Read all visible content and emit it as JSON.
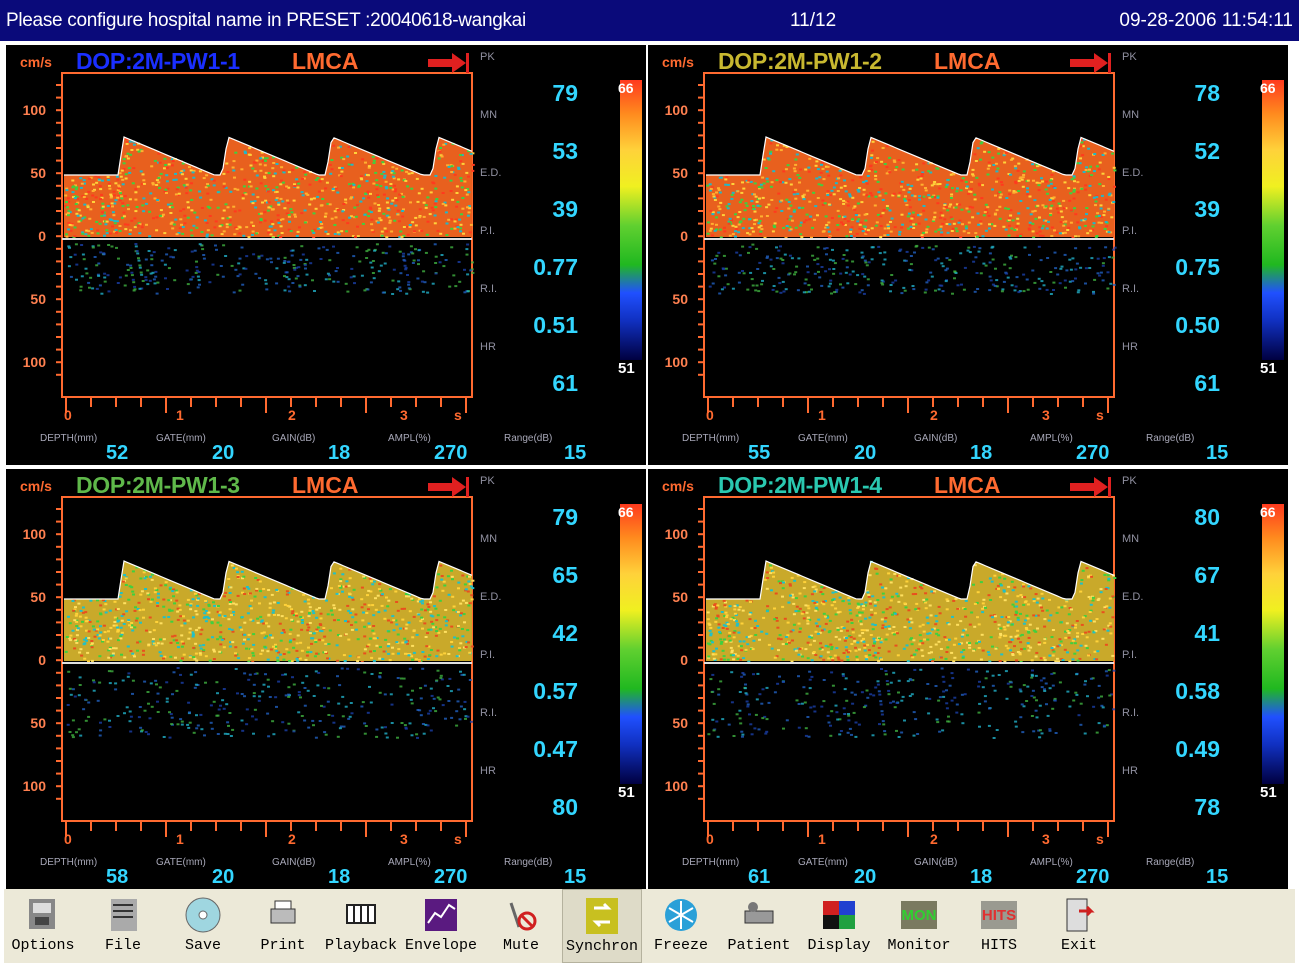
{
  "titlebar": {
    "left": "Please configure hospital name in PRESET :20040618-wangkai",
    "page": "11/12",
    "datetime": "09-28-2006  11:54:11"
  },
  "colors": {
    "title_bg": "#0a0a7a",
    "accent_orange": "#ff6a30",
    "value_cyan": "#33d6ff",
    "toolbar_bg": "#ece9d8"
  },
  "common": {
    "unit": "cm/s",
    "vessel": "LMCA",
    "yticks": [
      "100",
      "50",
      "0",
      "50",
      "100"
    ],
    "xticks": [
      "0",
      "1",
      "2",
      "3",
      "s"
    ],
    "param_labels": [
      "PK",
      "MN",
      "E.D.",
      "P.I.",
      "R.I.",
      "HR"
    ],
    "bottom_labels": [
      "DEPTH(mm)",
      "GATE(mm)",
      "GAIN(dB)",
      "AMPL(%)",
      "Range(dB)"
    ],
    "colorbar_top": "66",
    "colorbar_bottom": "51"
  },
  "panels": [
    {
      "channel": "DOP:2M-PW1-1",
      "channel_color": "#1a2fff",
      "values": [
        "79",
        "53",
        "39",
        "0.77",
        "0.51",
        "61"
      ],
      "depth": "52",
      "gate": "20",
      "gain": "18",
      "ampl": "270",
      "range": "15"
    },
    {
      "channel": "DOP:2M-PW1-2",
      "channel_color": "#c8b830",
      "values": [
        "78",
        "52",
        "39",
        "0.75",
        "0.50",
        "61"
      ],
      "depth": "55",
      "gate": "20",
      "gain": "18",
      "ampl": "270",
      "range": "15"
    },
    {
      "channel": "DOP:2M-PW1-3",
      "channel_color": "#5fb84a",
      "values": [
        "79",
        "65",
        "42",
        "0.57",
        "0.47",
        "80"
      ],
      "depth": "58",
      "gate": "20",
      "gain": "18",
      "ampl": "270",
      "range": "15"
    },
    {
      "channel": "DOP:2M-PW1-4",
      "channel_color": "#2ac8b0",
      "values": [
        "80",
        "67",
        "41",
        "0.58",
        "0.49",
        "78"
      ],
      "depth": "61",
      "gate": "20",
      "gain": "18",
      "ampl": "270",
      "range": "15"
    }
  ],
  "toolbar": {
    "items": [
      {
        "label": "Options",
        "icon": "options-icon"
      },
      {
        "label": "File",
        "icon": "file-icon"
      },
      {
        "label": "Save",
        "icon": "save-disc-icon"
      },
      {
        "label": "Print",
        "icon": "printer-icon"
      },
      {
        "label": "Playback",
        "icon": "playback-icon"
      },
      {
        "label": "Envelope",
        "icon": "envelope-icon"
      },
      {
        "label": "Mute",
        "icon": "mute-icon"
      },
      {
        "label": "Synchron",
        "icon": "synchron-icon"
      },
      {
        "label": "Freeze",
        "icon": "snowflake-icon"
      },
      {
        "label": "Patient",
        "icon": "patient-icon"
      },
      {
        "label": "Display",
        "icon": "display-icon"
      },
      {
        "label": "Monitor",
        "icon": "monitor-icon",
        "badge": "MON"
      },
      {
        "label": "HITS",
        "icon": "hits-icon",
        "badge": "HITS"
      },
      {
        "label": "Exit",
        "icon": "exit-door-icon"
      }
    ]
  }
}
